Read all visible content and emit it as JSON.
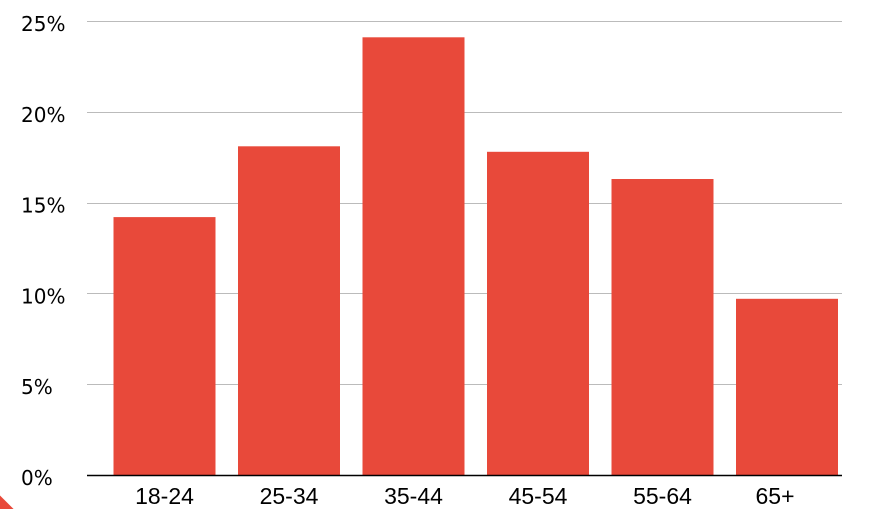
{
  "chart_data": {
    "type": "bar",
    "title": "",
    "xlabel": "",
    "ylabel": "",
    "categories": [
      "18-24",
      "25-34",
      "35-44",
      "45-54",
      "55-64",
      "65+"
    ],
    "values": [
      14.2,
      18.1,
      24.1,
      17.8,
      16.3,
      9.7
    ],
    "ylim": [
      0,
      25
    ],
    "yticks": [
      0,
      5,
      10,
      15,
      20,
      25
    ],
    "ytick_labels": [
      "0%",
      "5%",
      "10%",
      "15%",
      "20%",
      "25%"
    ],
    "grid": true,
    "legend": "none",
    "bar_color": "#e8493a",
    "grid_color": "#bbbbbb",
    "axis_color": "#000000"
  }
}
